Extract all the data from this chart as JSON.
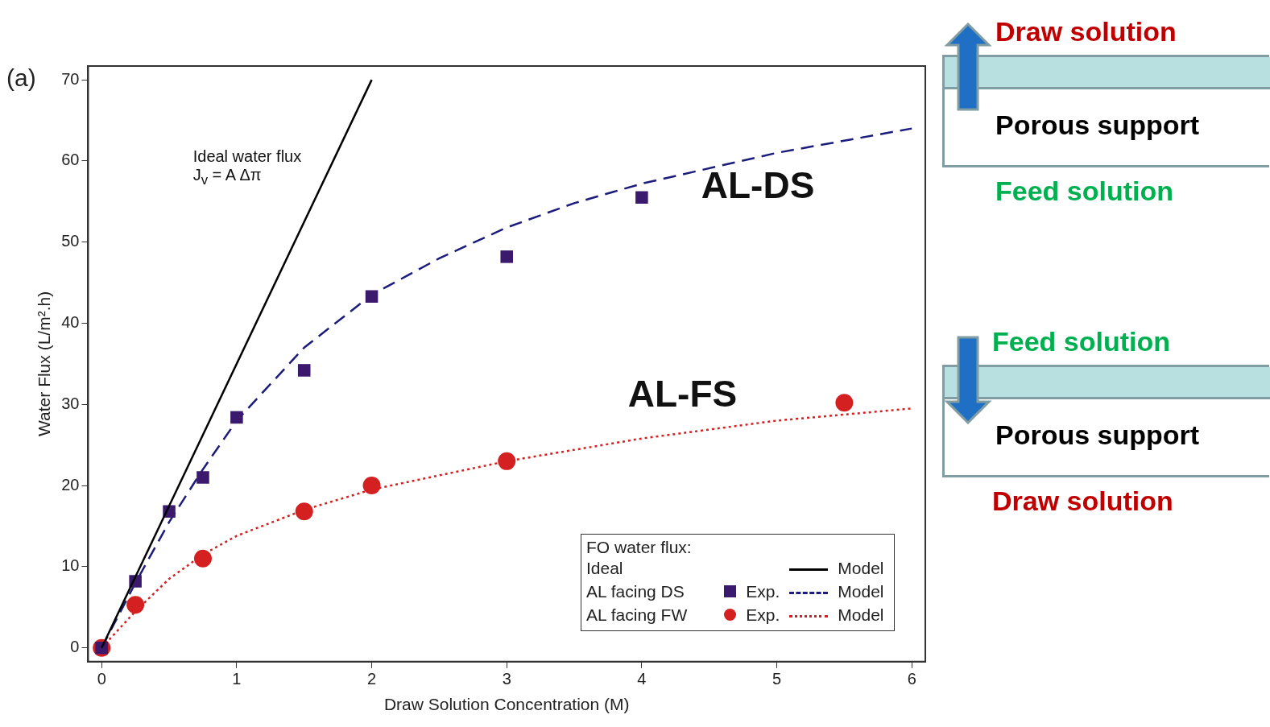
{
  "chart_data": {
    "type": "scatter",
    "xlabel": "Draw Solution Concentration (M)",
    "ylabel": "Water Flux (L/m².h)",
    "legend_title": "FO water flux:",
    "xlim": [
      -0.1,
      6.1
    ],
    "ylim": [
      -1.7,
      71.7
    ],
    "xticks": [
      0,
      1,
      2,
      3,
      4,
      5,
      6
    ],
    "yticks": [
      0,
      10,
      20,
      30,
      40,
      50,
      60,
      70
    ],
    "grid": false,
    "legend": "bottom right",
    "series": [
      {
        "name": "Model",
        "type": "line",
        "color": "#000000",
        "line_style": "solid",
        "marker": "none",
        "x": [
          0,
          2
        ],
        "values": [
          0,
          70
        ]
      },
      {
        "name": "Exp.",
        "type": "scatter",
        "color": "#3b1a6e",
        "marker": "square",
        "x": [
          0,
          0.25,
          0.5,
          0.75,
          1,
          1.5,
          2,
          3,
          4
        ],
        "values": [
          0,
          8.2,
          16.8,
          21,
          28.4,
          34.2,
          43.3,
          48.2,
          55.5
        ]
      },
      {
        "name": "Model",
        "type": "line",
        "color": "#1c1c7c",
        "line_style": "dashed",
        "marker": "none",
        "x": [
          0,
          0.25,
          0.5,
          0.75,
          1,
          1.5,
          2,
          2.5,
          3,
          3.5,
          4,
          5,
          6
        ],
        "values": [
          0,
          8,
          15.5,
          22,
          28,
          37,
          43.5,
          48,
          51.8,
          54.8,
          57.2,
          61,
          64
        ]
      },
      {
        "name": "Exp.",
        "type": "scatter",
        "color": "#d42020",
        "marker": "circle",
        "x": [
          0,
          0.25,
          0.75,
          1.5,
          2,
          3,
          5.5
        ],
        "values": [
          0,
          5.3,
          11,
          16.8,
          20,
          23,
          30.2
        ]
      },
      {
        "name": "Model",
        "type": "line",
        "color": "#d42020",
        "line_style": "dotted",
        "marker": "none",
        "x": [
          0,
          0.25,
          0.5,
          0.75,
          1,
          1.5,
          2,
          3,
          4,
          5,
          6
        ],
        "values": [
          0,
          4.5,
          8.5,
          11.5,
          13.8,
          17,
          19.5,
          23,
          25.8,
          28,
          29.5
        ]
      }
    ],
    "annotations": [
      "(a)",
      "Ideal water flux\nJ$_{v}$ = A Δπ",
      "AL-DS",
      "AL-FS",
      "Ideal",
      "AL facing DS",
      "AL facing FW",
      "Draw solution",
      "Porous support",
      "Feed solution",
      "Feed solution",
      "Porous support",
      "Draw solution"
    ]
  }
}
